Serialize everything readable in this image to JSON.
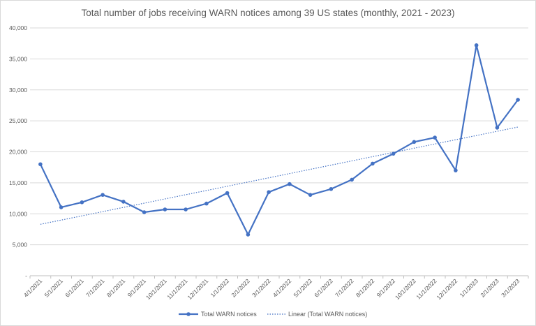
{
  "chart_data": {
    "type": "line",
    "title": "Total number of jobs receiving WARN notices among 39 US states (monthly, 2021 - 2023)",
    "xlabel": "",
    "ylabel": "",
    "ylim": [
      0,
      40000
    ],
    "y_ticks": [
      "-",
      "5,000",
      "10,000",
      "15,000",
      "20,000",
      "25,000",
      "30,000",
      "35,000",
      "40,000"
    ],
    "y_tick_values": [
      0,
      5000,
      10000,
      15000,
      20000,
      25000,
      30000,
      35000,
      40000
    ],
    "grid": true,
    "legend_placement": "bottom",
    "categories": [
      "4/1/2021",
      "5/1/2021",
      "6/1/2021",
      "7/1/2021",
      "8/1/2021",
      "9/1/2021",
      "10/1/2021",
      "11/1/2021",
      "12/1/2021",
      "1/1/2022",
      "2/1/2022",
      "3/1/2022",
      "4/1/2022",
      "5/1/2022",
      "6/1/2022",
      "7/1/2022",
      "8/1/2022",
      "9/1/2022",
      "10/1/2022",
      "11/1/2022",
      "12/1/2022",
      "1/1/2023",
      "2/1/2023",
      "3/1/2023"
    ],
    "series": [
      {
        "name": "Total WARN notices",
        "color": "#4472c4",
        "values": [
          18000,
          11050,
          11850,
          13050,
          11950,
          10250,
          10700,
          10700,
          11650,
          13350,
          6650,
          13500,
          14800,
          13050,
          14000,
          15500,
          18100,
          19700,
          21600,
          22300,
          17000,
          37200,
          23900,
          28400
        ]
      }
    ],
    "trendline": {
      "name": "Linear (Total WARN notices)",
      "color": "#4472c4",
      "style": "dotted",
      "start": 8300,
      "end": 24000
    }
  }
}
